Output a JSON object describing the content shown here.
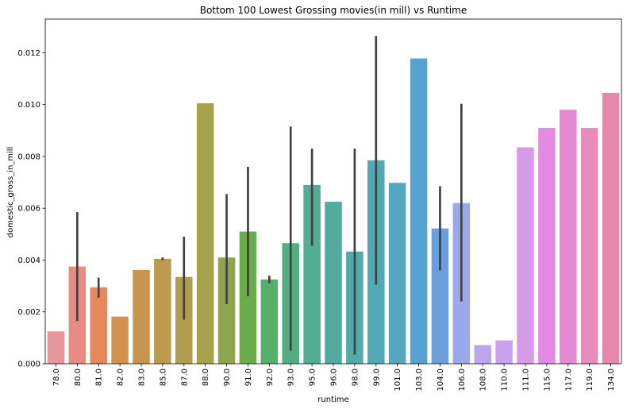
{
  "chart_data": {
    "type": "bar",
    "title": "Bottom 100 Lowest Grossing movies(in mill) vs Runtime",
    "xlabel": "runtime",
    "ylabel": "domestic_gross_in_mill",
    "ylim": [
      0,
      0.0133
    ],
    "yticks": [
      "0.000",
      "0.002",
      "0.004",
      "0.006",
      "0.008",
      "0.010",
      "0.012"
    ],
    "grid": false,
    "categories": [
      "78.0",
      "80.0",
      "81.0",
      "82.0",
      "83.0",
      "85.0",
      "87.0",
      "88.0",
      "90.0",
      "91.0",
      "92.0",
      "93.0",
      "95.0",
      "96.0",
      "98.0",
      "99.0",
      "101.0",
      "103.0",
      "104.0",
      "106.0",
      "108.0",
      "110.0",
      "111.0",
      "115.0",
      "117.0",
      "119.0",
      "134.0"
    ],
    "values": [
      0.00125,
      0.00375,
      0.00295,
      0.00182,
      0.00362,
      0.00405,
      0.00335,
      0.01005,
      0.0041,
      0.0051,
      0.00325,
      0.00465,
      0.0069,
      0.00625,
      0.00433,
      0.00785,
      0.00698,
      0.01178,
      0.00522,
      0.0062,
      0.00072,
      0.0009,
      0.00835,
      0.0091,
      0.0098,
      0.0091,
      0.01045
    ],
    "error_low": [
      null,
      0.00165,
      0.00255,
      null,
      null,
      0.004,
      0.0017,
      null,
      0.0023,
      0.0026,
      0.0031,
      0.0005,
      0.00455,
      null,
      0.00035,
      0.00305,
      null,
      null,
      0.0036,
      0.0024,
      null,
      null,
      null,
      null,
      null,
      null,
      null
    ],
    "error_high": [
      null,
      0.00585,
      0.00332,
      null,
      null,
      0.0041,
      0.0049,
      null,
      0.00655,
      0.0076,
      0.0034,
      0.00915,
      0.0083,
      null,
      0.0083,
      0.01265,
      null,
      null,
      0.00685,
      0.01003,
      null,
      null,
      null,
      null,
      null,
      null,
      null
    ],
    "colors": [
      "#e9969b",
      "#e88b82",
      "#e5895c",
      "#d5924e",
      "#c8954d",
      "#bc9a4e",
      "#b09e4e",
      "#a5a24b",
      "#8fa54d",
      "#6aae4b",
      "#56af6a",
      "#52ad83",
      "#52ad93",
      "#53aba0",
      "#52aaaa",
      "#53a8b5",
      "#57a6c1",
      "#55a3ce",
      "#6b9fdc",
      "#9ca8ec",
      "#bba6ee",
      "#c9a1ee",
      "#d79ae9",
      "#e58ae4",
      "#e58ad2",
      "#e68dbd",
      "#e588ab"
    ],
    "error_color": "#424242"
  }
}
